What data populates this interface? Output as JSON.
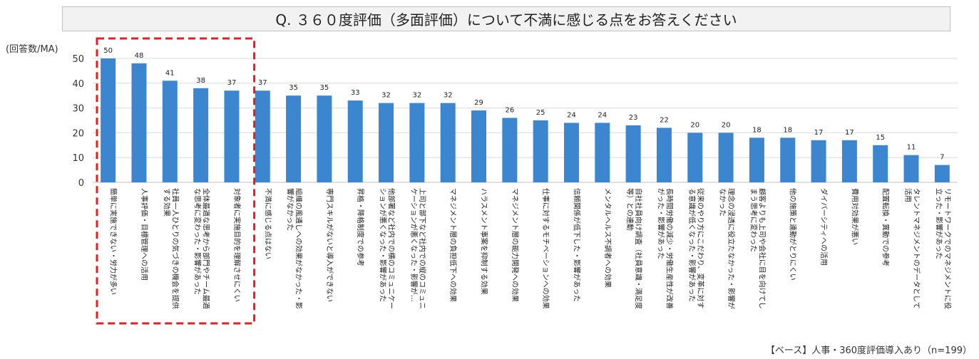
{
  "header": {
    "title": "Q. ３６０度評価（多面評価）について不満に感じる点をお答えください",
    "unit": "(回答数/MA)",
    "base_note": "【ベース】人事・360度評価導入あり（n=199）"
  },
  "colors": {
    "bar": "#3b86cf",
    "highlight_box": "#e02020",
    "grid": "#d9d9d9"
  },
  "chart_data": {
    "type": "bar",
    "ylim": [
      0,
      50
    ],
    "yticks": [
      0,
      10,
      20,
      30,
      40,
      50
    ],
    "grid": true,
    "highlighted_count": 5,
    "categories": [
      [
        "簡単に実施できない・労力が多い"
      ],
      [
        "人事評価・目標管理への活用"
      ],
      [
        "社員一人ひとりの気づきの機会を提供",
        "する効果"
      ],
      [
        "全体最適な思考から部門やチーム最適",
        "な思考に変わった・影響があった"
      ],
      [
        "対象者に実施目的を理解させにくい"
      ],
      [
        "不満に感じる点はない"
      ],
      [
        "組織の風通しへの効果がなかった・影",
        "響がなかった"
      ],
      [
        "専門スキルがないと導入ができない"
      ],
      [
        "昇格・降格制度での参考"
      ],
      [
        "他部署など社内での横のコミュニケー",
        "ションが悪くなった・影響があった"
      ],
      [
        "上司と部下など社内での縦のコミュニ",
        "ケーションが悪くなった・影響が…"
      ],
      [
        "マネジメント層の負担低下への効果"
      ],
      [
        "ハラスメント事案を抑制する効果"
      ],
      [
        "マネジメント層の能力開発への効果"
      ],
      [
        "仕事に対するモチベーションへの効果"
      ],
      [
        "信頼関係が低下した・影響があった"
      ],
      [
        "メンタルヘルス不調者への効果"
      ],
      [
        "自社社員向け調査（社員意識・満足度",
        "等）との連動"
      ],
      [
        "長時間労働の減少・労働生産性が改善",
        "がった・影響があった"
      ],
      [
        "従来のやり方にこだわり、変革に対す",
        "る意識が低くなった・影響があった"
      ],
      [
        "理念の浸透に役立たなかった・影響が",
        "なかった"
      ],
      [
        "顧客よりも上司や会社に目を向けてし",
        "まう思考に変わった"
      ],
      [
        "他の施策と連動がとりにくい"
      ],
      [
        "ダイバーシティへの活用"
      ],
      [
        "費用対効果が悪い"
      ],
      [
        "配置転換・異動での参考"
      ],
      [
        "タレントマネジメントのデータとして",
        "活用"
      ],
      [
        "リモートワークでのマネジメントに役",
        "立った・影響があった"
      ]
    ],
    "values": [
      50,
      48,
      41,
      38,
      37,
      37,
      35,
      35,
      33,
      32,
      32,
      32,
      29,
      26,
      25,
      24,
      24,
      23,
      22,
      20,
      20,
      18,
      18,
      17,
      17,
      15,
      11,
      7
    ]
  }
}
